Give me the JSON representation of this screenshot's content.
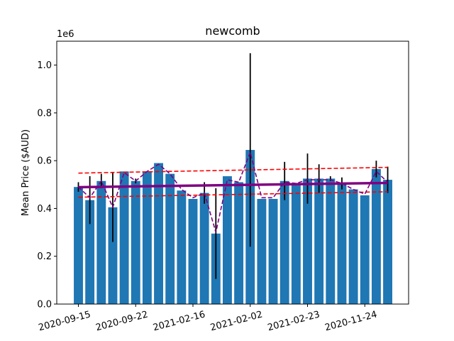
{
  "chart_data": {
    "type": "bar",
    "title": "newcomb",
    "xlabel": "",
    "ylabel": "Mean Price ($AUD)",
    "y_scale_label": "1e6",
    "ylim": [
      0,
      1.1
    ],
    "y_ticks": [
      0.0,
      0.2,
      0.4,
      0.6,
      0.8,
      1.0
    ],
    "y_tick_labels": [
      "0.0",
      "0.2",
      "0.4",
      "0.6",
      "0.8",
      "1.0"
    ],
    "x_tick_labels": [
      "2020-09-15",
      "2020-09-22",
      "2021-02-16",
      "2021-02-02",
      "2021-02-23",
      "2020-11-24"
    ],
    "x_tick_positions": [
      0,
      5,
      10,
      15,
      20,
      25
    ],
    "bar_color": "#1f77b4",
    "values": [
      0.49,
      0.435,
      0.515,
      0.405,
      0.555,
      0.515,
      0.555,
      0.59,
      0.545,
      0.475,
      0.44,
      0.465,
      0.295,
      0.535,
      0.51,
      0.645,
      0.44,
      0.44,
      0.515,
      0.505,
      0.525,
      0.525,
      0.525,
      0.505,
      0.48,
      0.455,
      0.565,
      0.52
    ],
    "errors": [
      0.02,
      0.1,
      0.03,
      0.145,
      0.0,
      0.01,
      0.0,
      0.0,
      0.0,
      0.0,
      0.0,
      0.045,
      0.19,
      0.0,
      0.0,
      0.405,
      0.0,
      0.0,
      0.08,
      0.0,
      0.105,
      0.06,
      0.01,
      0.025,
      0.0,
      0.0,
      0.035,
      0.055
    ],
    "error_color": "#000000",
    "smooth_line": {
      "color": "#800080",
      "style": "dashed",
      "values": [
        0.49,
        0.445,
        0.515,
        0.405,
        0.55,
        0.515,
        0.555,
        0.585,
        0.545,
        0.48,
        0.445,
        0.465,
        0.3,
        0.52,
        0.51,
        0.635,
        0.445,
        0.445,
        0.51,
        0.505,
        0.52,
        0.52,
        0.52,
        0.505,
        0.48,
        0.46,
        0.555,
        0.51
      ]
    },
    "trend_line": {
      "color": "#800080",
      "start": 0.489,
      "end": 0.507
    },
    "upper_bound": {
      "color": "#ff0000",
      "style": "dashed",
      "start": 0.548,
      "end": 0.572
    },
    "lower_bound": {
      "color": "#ff0000",
      "style": "dashed",
      "start": 0.447,
      "end": 0.47
    },
    "grid": false,
    "legend": "none"
  }
}
